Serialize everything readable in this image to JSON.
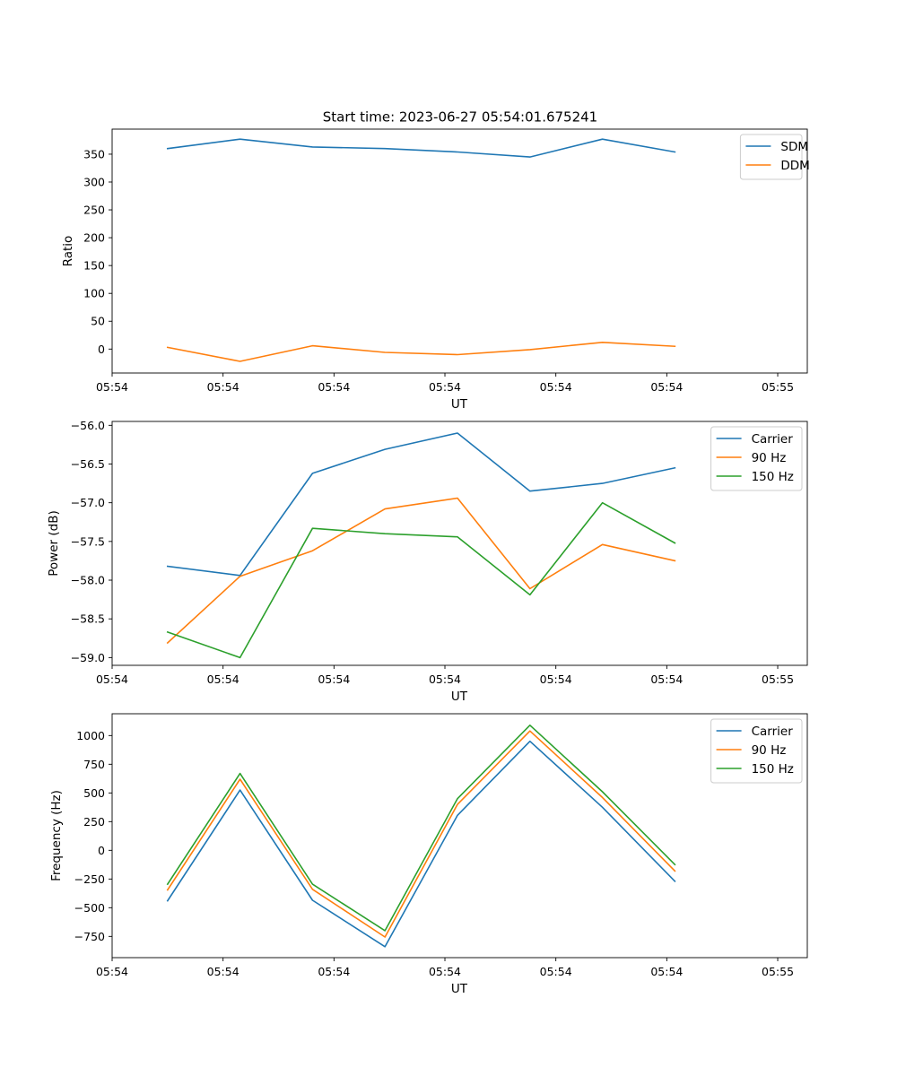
{
  "figure": {
    "title": "Start time: 2023-06-27 05:54:01.675241"
  },
  "chart_data": [
    {
      "type": "line",
      "title": "Start time: 2023-06-27 05:54:01.675241",
      "xlabel": "UT",
      "ylabel": "Ratio",
      "xlim": [
        0,
        9.4
      ],
      "ylim": [
        -43,
        395
      ],
      "x_tick_values": [
        0,
        1.5,
        3,
        4.5,
        6,
        7.5,
        9
      ],
      "x_tick_labels": [
        "05:54",
        "05:54",
        "05:54",
        "05:54",
        "05:54",
        "05:54",
        "05:55"
      ],
      "y_ticks": [
        0,
        50,
        100,
        150,
        200,
        250,
        300,
        350
      ],
      "x": [
        0.75,
        1.73,
        2.71,
        3.69,
        4.67,
        5.65,
        6.63,
        7.61
      ],
      "legend_position": "upper right",
      "series": [
        {
          "name": "SDM",
          "color": "#1f77b4",
          "values": [
            360,
            377,
            363,
            360,
            354,
            345,
            377,
            354
          ]
        },
        {
          "name": "DDM",
          "color": "#ff7f0e",
          "values": [
            3,
            -22,
            6,
            -6,
            -10,
            -1,
            12,
            5
          ]
        }
      ]
    },
    {
      "type": "line",
      "title": "",
      "xlabel": "UT",
      "ylabel": "Power (dB)",
      "xlim": [
        0,
        9.4
      ],
      "ylim": [
        -59.1,
        -55.95
      ],
      "x_tick_values": [
        0,
        1.5,
        3,
        4.5,
        6,
        7.5,
        9
      ],
      "x_tick_labels": [
        "05:54",
        "05:54",
        "05:54",
        "05:54",
        "05:54",
        "05:54",
        "05:55"
      ],
      "y_ticks": [
        -59.0,
        -58.5,
        -58.0,
        -57.5,
        -57.0,
        -56.5,
        -56.0
      ],
      "y_tick_labels": [
        "−59.0",
        "−58.5",
        "−58.0",
        "−57.5",
        "−57.0",
        "−56.5",
        "−56.0"
      ],
      "x": [
        0.75,
        1.73,
        2.71,
        3.69,
        4.67,
        5.65,
        6.63,
        7.61
      ],
      "legend_position": "upper right",
      "series": [
        {
          "name": "Carrier",
          "color": "#1f77b4",
          "values": [
            -57.82,
            -57.94,
            -56.62,
            -56.31,
            -56.1,
            -56.85,
            -56.75,
            -56.55
          ]
        },
        {
          "name": "90 Hz",
          "color": "#ff7f0e",
          "values": [
            -58.81,
            -57.95,
            -57.62,
            -57.08,
            -56.94,
            -58.11,
            -57.54,
            -57.75
          ]
        },
        {
          "name": "150 Hz",
          "color": "#2ca02c",
          "values": [
            -58.67,
            -59.0,
            -57.33,
            -57.4,
            -57.44,
            -58.19,
            -57.0,
            -57.52
          ]
        }
      ]
    },
    {
      "type": "line",
      "title": "",
      "xlabel": "UT",
      "ylabel": "Frequency (Hz)",
      "xlim": [
        0,
        9.4
      ],
      "ylim": [
        -935,
        1190
      ],
      "x_tick_values": [
        0,
        1.5,
        3,
        4.5,
        6,
        7.5,
        9
      ],
      "x_tick_labels": [
        "05:54",
        "05:54",
        "05:54",
        "05:54",
        "05:54",
        "05:54",
        "05:55"
      ],
      "y_ticks": [
        -750,
        -500,
        -250,
        0,
        250,
        500,
        750,
        1000
      ],
      "y_tick_labels": [
        "−750",
        "−500",
        "−250",
        "0",
        "250",
        "500",
        "750",
        "1000"
      ],
      "x": [
        0.75,
        1.73,
        2.71,
        3.69,
        4.67,
        5.65,
        6.63,
        7.61
      ],
      "legend_position": "upper right",
      "series": [
        {
          "name": "Carrier",
          "color": "#1f77b4",
          "values": [
            -440,
            525,
            -435,
            -840,
            305,
            950,
            375,
            -270
          ]
        },
        {
          "name": "90 Hz",
          "color": "#ff7f0e",
          "values": [
            -345,
            620,
            -340,
            -755,
            400,
            1040,
            460,
            -180
          ]
        },
        {
          "name": "150 Hz",
          "color": "#2ca02c",
          "values": [
            -295,
            670,
            -295,
            -700,
            450,
            1090,
            510,
            -125
          ]
        }
      ]
    }
  ]
}
